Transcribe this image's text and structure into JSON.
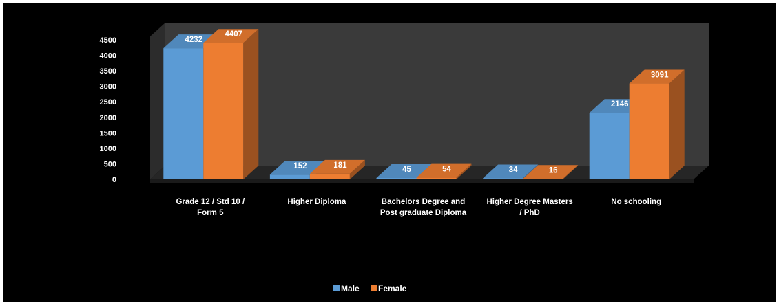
{
  "chart_data": {
    "type": "bar",
    "categories": [
      [
        "Grade 12 / Std 10 /",
        "Form 5"
      ],
      [
        "Higher Diploma"
      ],
      [
        "Bachelors Degree and",
        "Post graduate Diploma"
      ],
      [
        "Higher Degree Masters",
        "/ PhD"
      ],
      [
        "No schooling"
      ]
    ],
    "series": [
      {
        "name": "Male",
        "values": [
          4232,
          152,
          45,
          34,
          2146
        ],
        "color": "#5b9bd5"
      },
      {
        "name": "Female",
        "values": [
          4407,
          181,
          54,
          16,
          3091
        ],
        "color": "#ed7d31"
      }
    ],
    "yticks": [
      "0",
      "500",
      "1000",
      "1500",
      "2000",
      "2500",
      "3000",
      "3500",
      "4000",
      "4500"
    ],
    "ylim": [
      0,
      4500
    ],
    "legend_position": "bottom",
    "background": "#000000",
    "wall_color": "#3a3a3a"
  }
}
